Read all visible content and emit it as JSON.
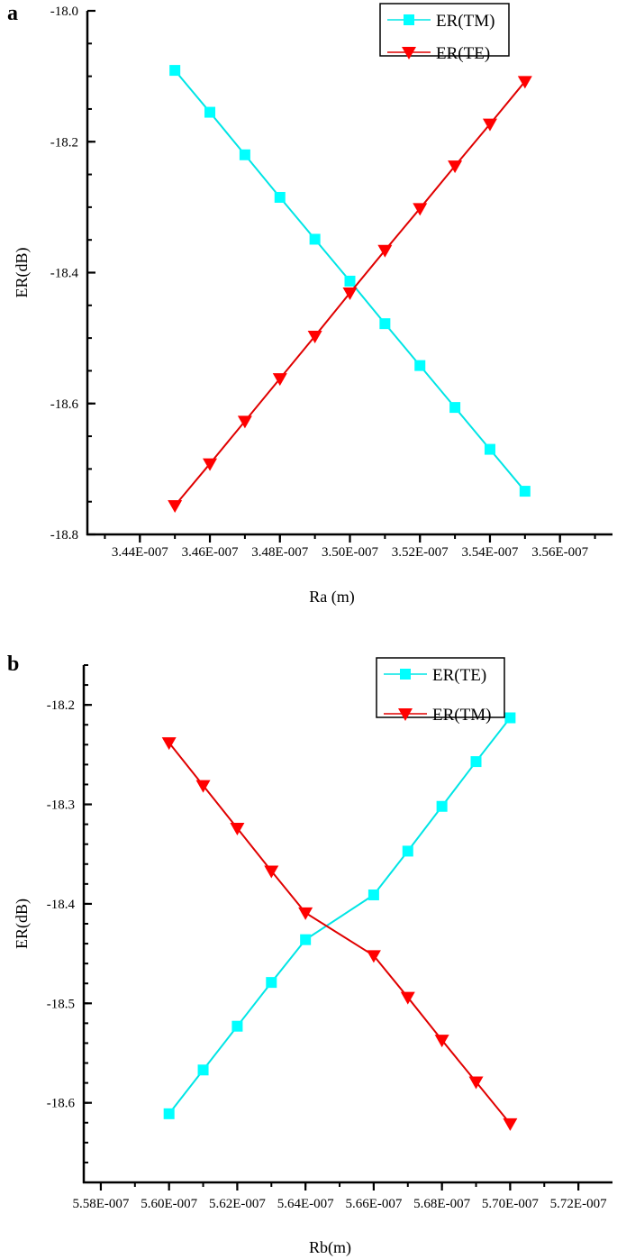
{
  "chart_data": [
    {
      "panel_label": "a",
      "type": "line",
      "xlabel": "Ra (m)",
      "ylabel": "ER(dB)",
      "xlim": [
        3.425e-07,
        3.575e-07
      ],
      "ylim": [
        -18.8,
        -18.0
      ],
      "x_major_ticks": [
        3.44e-07,
        3.46e-07,
        3.48e-07,
        3.5e-07,
        3.52e-07,
        3.54e-07,
        3.56e-07
      ],
      "x_tick_labels": [
        "3.44E-007",
        "3.46E-007",
        "3.48E-007",
        "3.50E-007",
        "3.52E-007",
        "3.54E-007",
        "3.56E-007"
      ],
      "x_minor_step": 1e-09,
      "y_major_ticks": [
        -18.0,
        -18.2,
        -18.4,
        -18.6,
        -18.8
      ],
      "y_tick_labels": [
        "-18.0",
        "-18.2",
        "-18.4",
        "-18.6",
        "-18.8"
      ],
      "y_minor_step": 0.05,
      "grid": false,
      "legend_position": "top-right",
      "series": [
        {
          "name": "ER(TM)",
          "color": "#00E5E5",
          "marker": "square",
          "x": [
            3.45e-07,
            3.46e-07,
            3.47e-07,
            3.48e-07,
            3.49e-07,
            3.5e-07,
            3.51e-07,
            3.52e-07,
            3.53e-07,
            3.54e-07,
            3.55e-07
          ],
          "y": [
            -18.091,
            -18.155,
            -18.22,
            -18.285,
            -18.349,
            -18.413,
            -18.478,
            -18.542,
            -18.606,
            -18.67,
            -18.734
          ]
        },
        {
          "name": "ER(TE)",
          "color": "#E00000",
          "marker": "triangle-down",
          "x": [
            3.45e-07,
            3.46e-07,
            3.47e-07,
            3.48e-07,
            3.49e-07,
            3.5e-07,
            3.51e-07,
            3.52e-07,
            3.53e-07,
            3.54e-07,
            3.55e-07
          ],
          "y": [
            -18.756,
            -18.692,
            -18.627,
            -18.562,
            -18.497,
            -18.431,
            -18.366,
            -18.302,
            -18.237,
            -18.173,
            -18.108
          ]
        }
      ]
    },
    {
      "panel_label": "b",
      "type": "line",
      "xlabel": "Rb(m)",
      "ylabel": "ER(dB)",
      "xlim": [
        5.575e-07,
        5.73e-07
      ],
      "ylim": [
        -18.68,
        -18.16
      ],
      "x_major_ticks": [
        5.58e-07,
        5.6e-07,
        5.62e-07,
        5.64e-07,
        5.66e-07,
        5.68e-07,
        5.7e-07,
        5.72e-07
      ],
      "x_tick_labels": [
        "5.58E-007",
        "5.60E-007",
        "5.62E-007",
        "5.64E-007",
        "5.66E-007",
        "5.68E-007",
        "5.70E-007",
        "5.72E-007"
      ],
      "x_minor_step": 1e-09,
      "y_major_ticks": [
        -18.2,
        -18.3,
        -18.4,
        -18.5,
        -18.6
      ],
      "y_tick_labels": [
        "-18.2",
        "-18.3",
        "-18.4",
        "-18.5",
        "-18.6"
      ],
      "y_minor_step": 0.02,
      "grid": false,
      "legend_position": "top-right",
      "series": [
        {
          "name": "ER(TE)",
          "color": "#00E5E5",
          "marker": "square",
          "x": [
            5.6e-07,
            5.61e-07,
            5.62e-07,
            5.63e-07,
            5.64e-07,
            5.66e-07,
            5.67e-07,
            5.68e-07,
            5.69e-07,
            5.7e-07
          ],
          "y": [
            -18.611,
            -18.567,
            -18.523,
            -18.479,
            -18.436,
            -18.391,
            -18.347,
            -18.302,
            -18.257,
            -18.213
          ]
        },
        {
          "name": "ER(TM)",
          "color": "#E00000",
          "marker": "triangle-down",
          "x": [
            5.6e-07,
            5.61e-07,
            5.62e-07,
            5.63e-07,
            5.64e-07,
            5.66e-07,
            5.67e-07,
            5.68e-07,
            5.69e-07,
            5.7e-07
          ],
          "y": [
            -18.238,
            -18.281,
            -18.324,
            -18.367,
            -18.409,
            -18.452,
            -18.494,
            -18.537,
            -18.579,
            -18.621
          ]
        }
      ]
    }
  ]
}
